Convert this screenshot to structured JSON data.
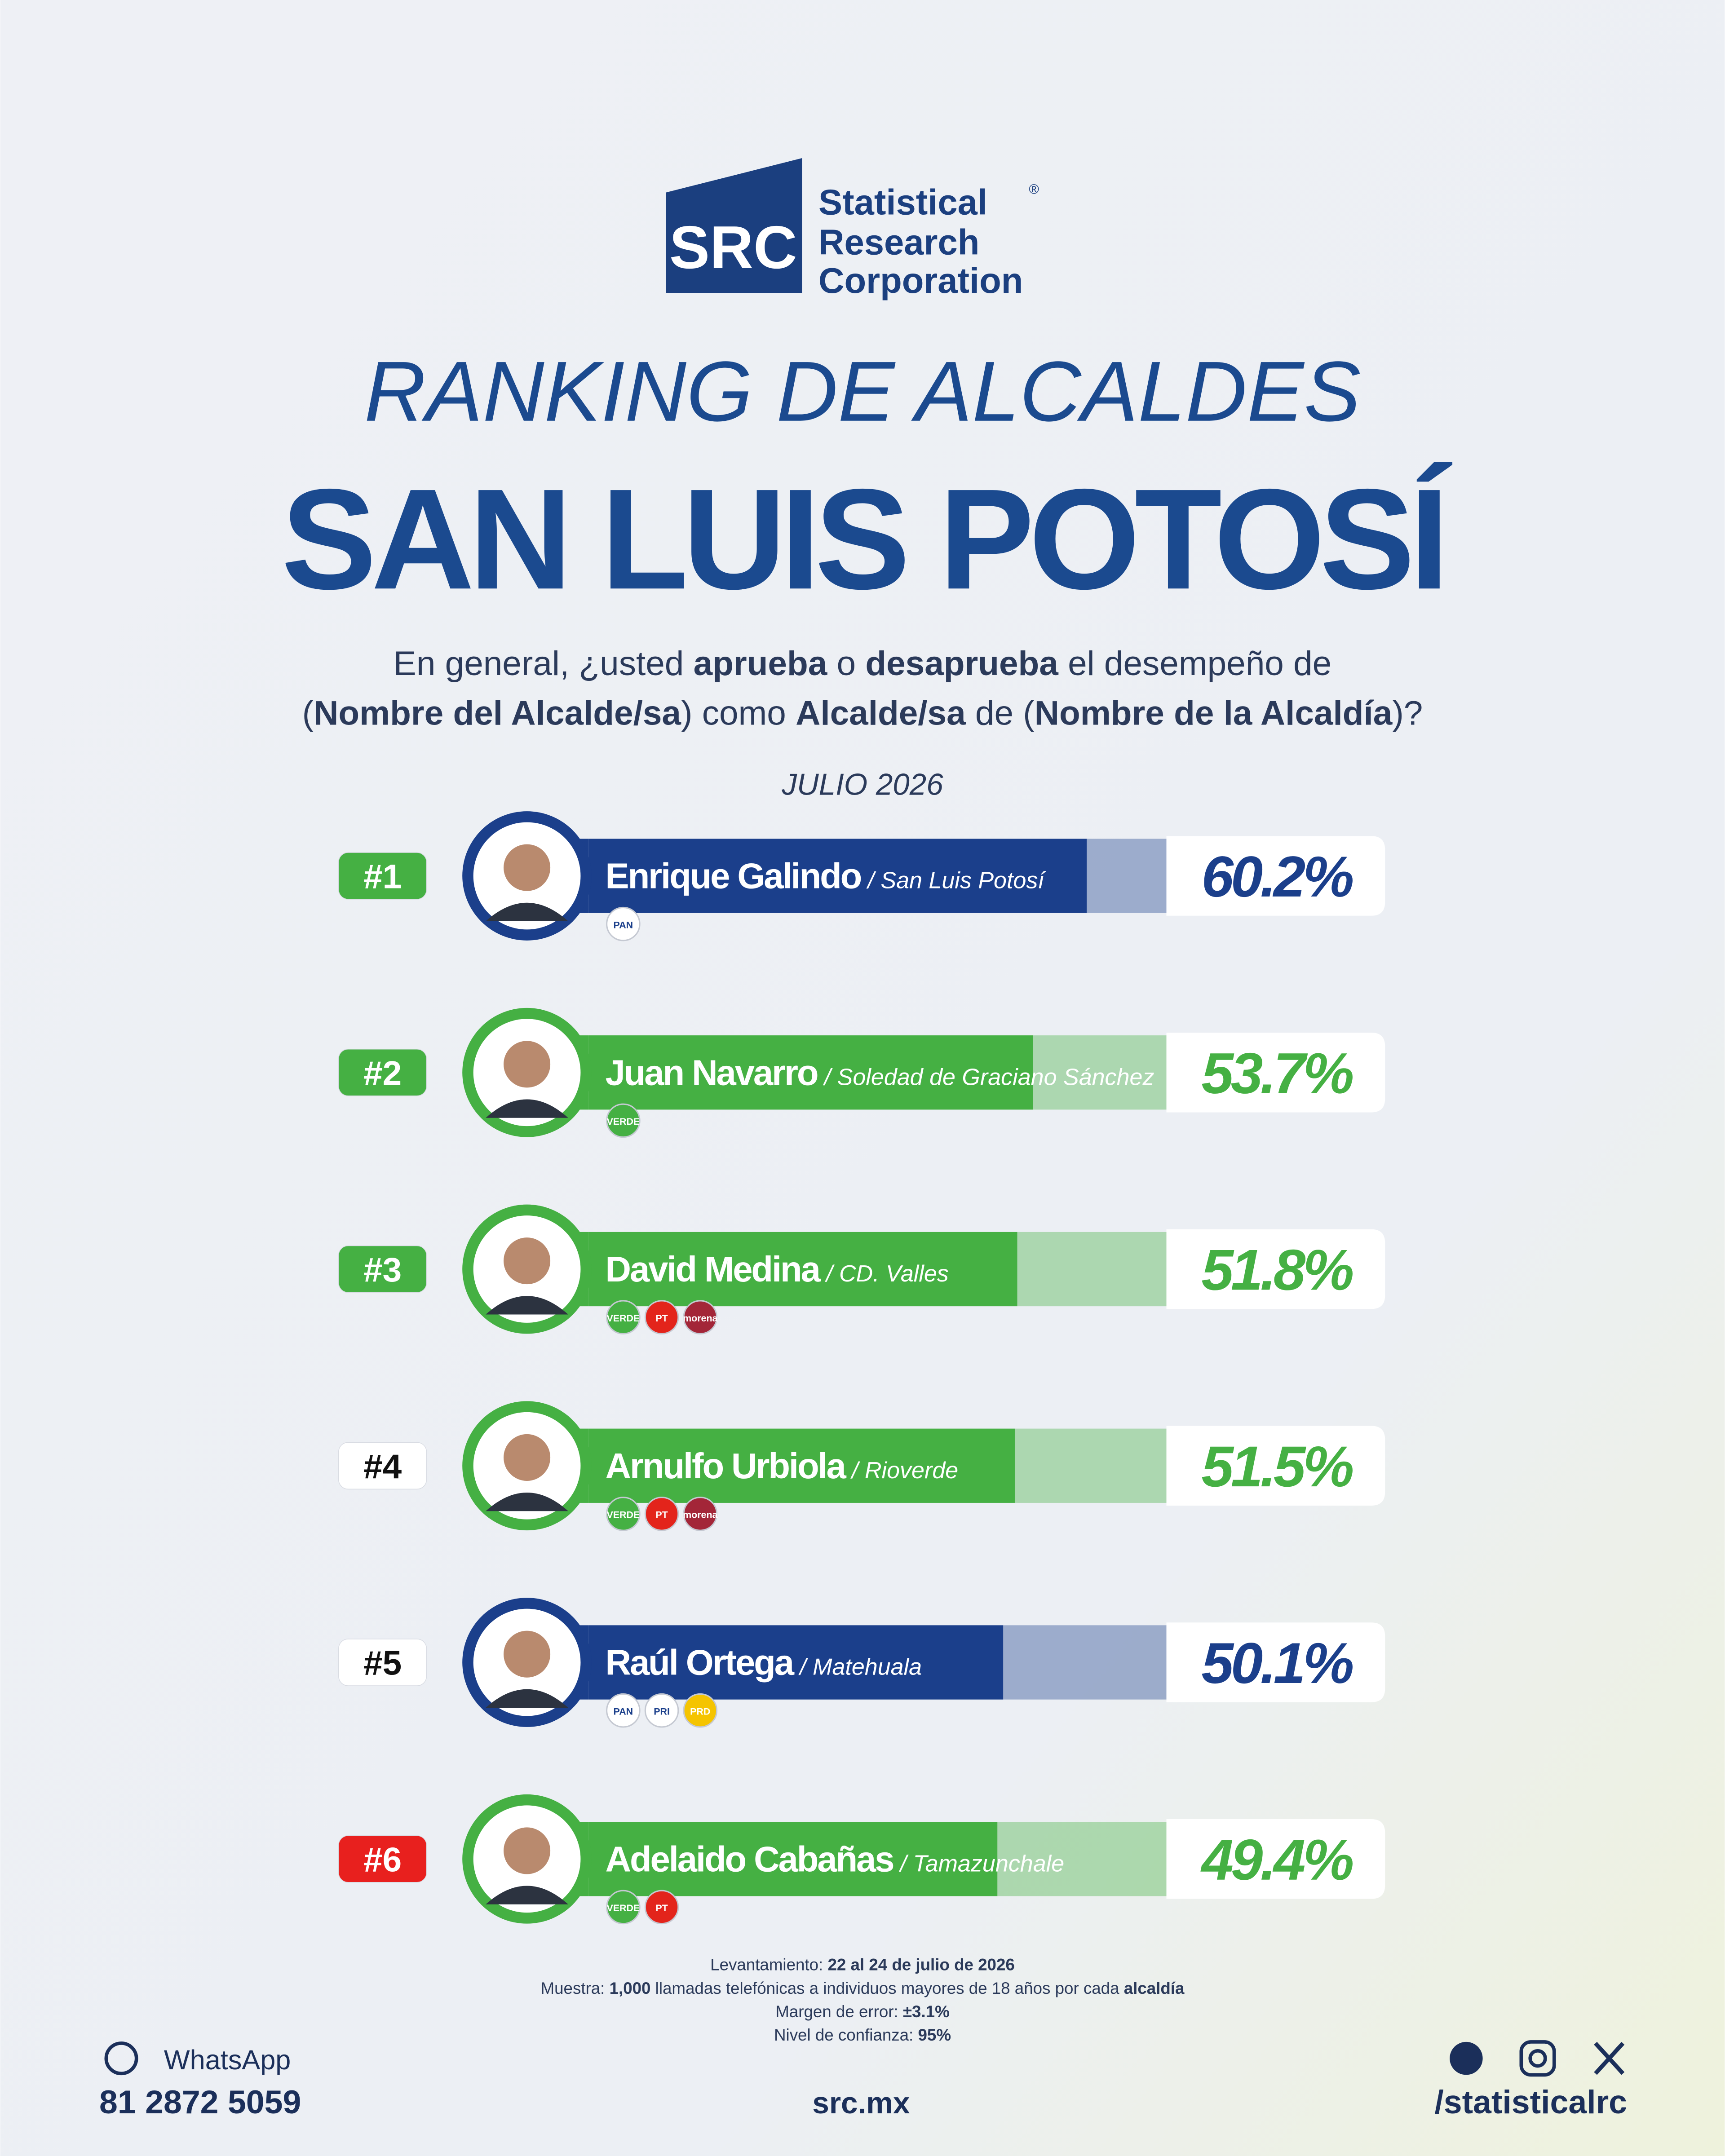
{
  "logo": {
    "mark": "SRC",
    "line1": "Statistical",
    "line2": "Research",
    "line3": "Corporation",
    "registered": "®"
  },
  "chart_data": {
    "type": "bar",
    "title": "RANKING DE ALCALDES",
    "subtitle": "SAN LUIS POTOSÍ",
    "question": [
      [
        {
          "text": "En general, ¿usted ",
          "bold": false
        },
        {
          "text": "aprueba",
          "bold": true
        },
        {
          "text": " o ",
          "bold": false
        },
        {
          "text": "desaprueba",
          "bold": true
        },
        {
          "text": " el desempeño de",
          "bold": false
        }
      ],
      [
        {
          "text": "(",
          "bold": false
        },
        {
          "text": "Nombre del Alcalde/sa",
          "bold": true
        },
        {
          "text": ") como ",
          "bold": false
        },
        {
          "text": "Alcalde/sa",
          "bold": true
        },
        {
          "text": " de (",
          "bold": false
        },
        {
          "text": "Nombre de la Alcaldía",
          "bold": true
        },
        {
          "text": ")?",
          "bold": false
        }
      ]
    ],
    "date": "JULIO 2026",
    "ranks": [
      "#1",
      "#2",
      "#3",
      "#4",
      "#5",
      "#6"
    ],
    "categories": [
      "Enrique Galindo",
      "Juan Navarro",
      "David Medina",
      "Arnulfo Urbiola",
      "Raúl Ortega",
      "Adelaido Cabañas"
    ],
    "regions": [
      "/ San Luis Potosí",
      "/ Soledad de Graciano Sánchez",
      "/ CD. Valles",
      "/ Rioverde",
      "/ Matehuala",
      "/ Tamazunchale"
    ],
    "values": [
      60.2,
      53.7,
      51.8,
      51.5,
      50.1,
      49.4
    ],
    "value_labels": [
      "60.2%",
      "53.7%",
      "51.8%",
      "51.5%",
      "50.1%",
      "49.4%"
    ],
    "colors": [
      "#1b3f8b",
      "#45b043",
      "#45b043",
      "#45b043",
      "#1b3f8b",
      "#45b043"
    ],
    "badge_colors": [
      "#45b043",
      "#45b043",
      "#45b043",
      "#ffffff",
      "#ffffff",
      "#e8201e"
    ],
    "parties": [
      [
        {
          "label": "PAN",
          "color": "#ffffff"
        }
      ],
      [
        {
          "label": "VERDE",
          "color": "#45b043"
        }
      ],
      [
        {
          "label": "VERDE",
          "color": "#45b043"
        },
        {
          "label": "PT",
          "color": "#e3241b"
        },
        {
          "label": "morena",
          "color": "#a32638"
        }
      ],
      [
        {
          "label": "VERDE",
          "color": "#45b043"
        },
        {
          "label": "PT",
          "color": "#e3241b"
        },
        {
          "label": "morena",
          "color": "#a32638"
        }
      ],
      [
        {
          "label": "PAN",
          "color": "#ffffff"
        },
        {
          "label": "PRI",
          "color": "#ffffff"
        },
        {
          "label": "PRD",
          "color": "#f5c400"
        }
      ],
      [
        {
          "label": "VERDE",
          "color": "#45b043"
        },
        {
          "label": "PT",
          "color": "#e3241b"
        }
      ]
    ],
    "xlim": [
      0,
      70
    ]
  },
  "methodology": [
    [
      {
        "text": "Levantamiento: ",
        "bold": false
      },
      {
        "text": "22 al 24 de julio de 2026",
        "bold": true
      }
    ],
    [
      {
        "text": "Muestra: ",
        "bold": false
      },
      {
        "text": "1,000",
        "bold": true
      },
      {
        "text": " llamadas telefónicas a individuos mayores de 18 años por cada ",
        "bold": false
      },
      {
        "text": "alcaldía",
        "bold": true
      }
    ],
    [
      {
        "text": "Margen de error: ",
        "bold": false
      },
      {
        "text": "±3.1%",
        "bold": true
      }
    ],
    [
      {
        "text": "Nivel de confianza: ",
        "bold": false
      },
      {
        "text": "95%",
        "bold": true
      }
    ]
  ],
  "footer": {
    "whatsapp": "WhatsApp",
    "phone": "81 2872 5059",
    "website": "src.mx",
    "handle": "/statisticalrc"
  }
}
